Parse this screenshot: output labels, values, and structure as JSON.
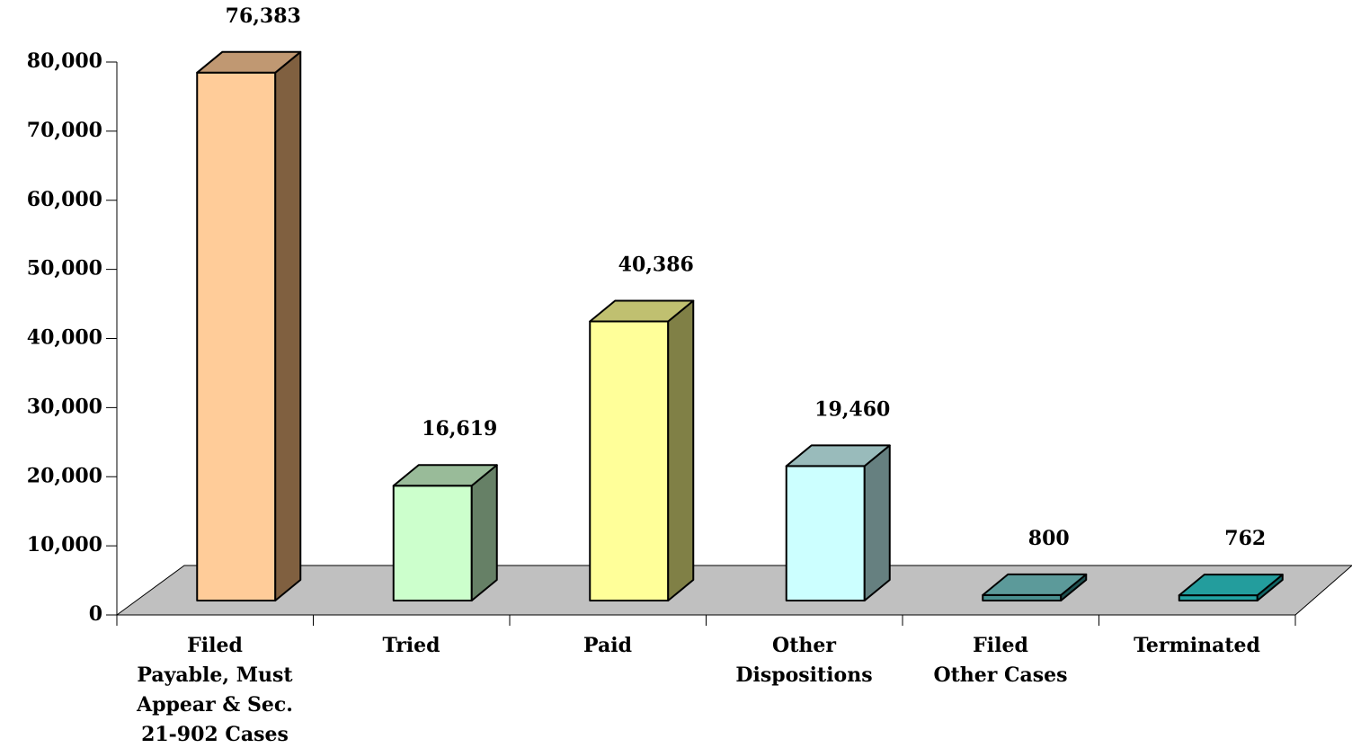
{
  "chart_data": {
    "type": "bar3d",
    "categories": [
      "Filed\nPayable, Must\nAppear & Sec.\n21-902 Cases",
      "Tried",
      "Paid",
      "Other\nDispositions",
      "Filed\nOther Cases",
      "Terminated"
    ],
    "values": [
      76383,
      16619,
      40386,
      19460,
      800,
      762
    ],
    "value_labels": [
      "76,383",
      "16,619",
      "40,386",
      "19,460",
      "800",
      "762"
    ],
    "colors": [
      [
        "#ffcc99",
        "#806040",
        "#c09872"
      ],
      [
        "#ccffcc",
        "#668066",
        "#99bb99"
      ],
      [
        "#ffff99",
        "#808046",
        "#c0c070"
      ],
      [
        "#ccffff",
        "#668080",
        "#99bbbb"
      ],
      [
        "#4a8f8f",
        "#1f5050",
        "#5c9a9a"
      ],
      [
        "#22a3a3",
        "#116666",
        "#239d9d"
      ]
    ],
    "ylim": [
      0,
      80000
    ],
    "yticks": [
      0,
      {
        "value": 10000,
        "label": "10,000"
      },
      {
        "value": 20000,
        "label": "20,000"
      },
      {
        "value": 30000,
        "label": "30,000"
      },
      {
        "value": 40000,
        "label": "40,000"
      },
      {
        "value": 50000,
        "label": "50,000"
      },
      {
        "value": 60000,
        "label": "60,000"
      },
      {
        "value": 70000,
        "label": "70,000"
      },
      {
        "value": 80000,
        "label": "80,000"
      }
    ],
    "floor_color": "#c0c0c0"
  }
}
